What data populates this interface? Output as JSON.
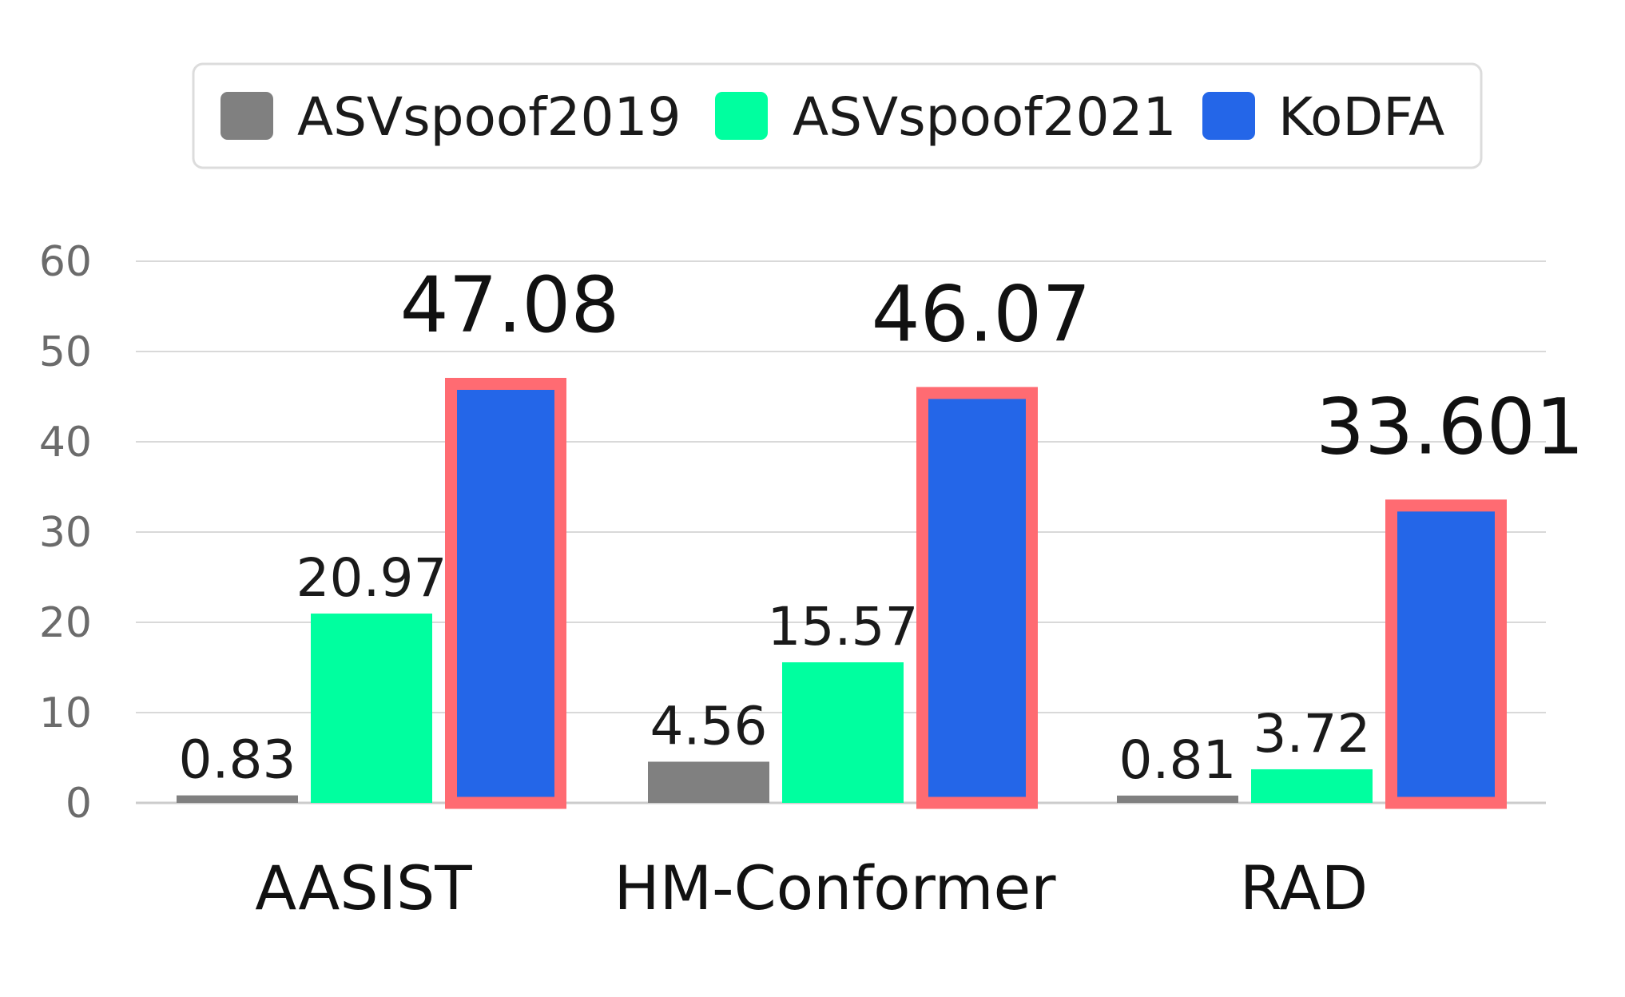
{
  "chart_data": {
    "type": "bar",
    "categories": [
      "AASIST",
      "HM-Conformer",
      "RAD"
    ],
    "series": [
      {
        "name": "ASVspoof2019",
        "values": [
          0.83,
          4.56,
          0.81
        ],
        "labels": [
          "0.83",
          "4.56",
          "0.81"
        ],
        "color": "#808080"
      },
      {
        "name": "ASVspoof2021",
        "values": [
          20.97,
          15.57,
          3.72
        ],
        "labels": [
          "20.97",
          "15.57",
          "3.72"
        ],
        "color": "#00ff9f"
      },
      {
        "name": "KoDFA",
        "values": [
          47.08,
          46.07,
          33.601
        ],
        "labels": [
          "47.08",
          "46.07",
          "33.601"
        ],
        "color": "#2466e8",
        "highlight_color": "#ff6b72"
      }
    ],
    "yticks": [
      "0",
      "10",
      "20",
      "30",
      "40",
      "50",
      "60"
    ],
    "ylim": [
      0,
      60
    ],
    "grid": true,
    "legend": "top"
  }
}
